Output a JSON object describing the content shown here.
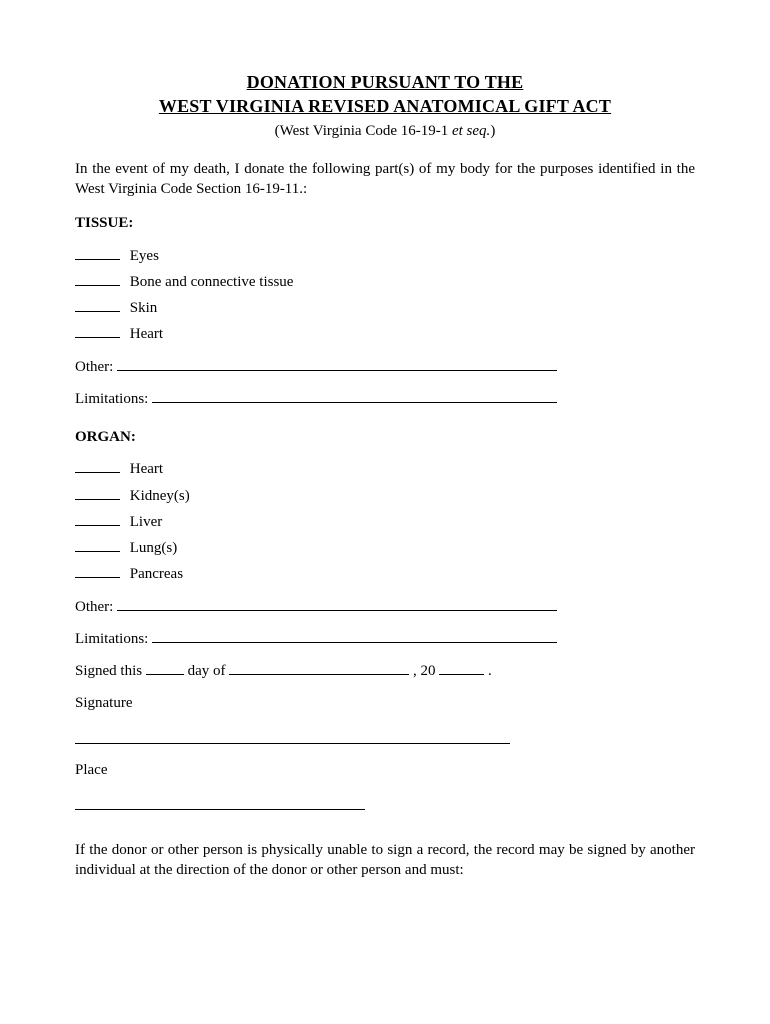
{
  "title": {
    "line1": "DONATION PURSUANT TO THE",
    "line2": "WEST VIRGINIA REVISED ANATOMICAL GIFT ACT"
  },
  "subtitle_prefix": "(West Virginia Code 16-19-1 ",
  "subtitle_italic": "et seq.",
  "subtitle_suffix": ")",
  "intro": "In the event of my death, I donate the following part(s) of my body for the purposes identified in the West Virginia Code Section 16-19-11.:",
  "tissue": {
    "heading": "TISSUE:",
    "items": [
      "Eyes",
      "Bone and connective tissue",
      "Skin",
      "Heart"
    ],
    "other_label": "Other:",
    "limitations_label": "Limitations:"
  },
  "organ": {
    "heading": "ORGAN:",
    "items": [
      "Heart",
      "Kidney(s)",
      "Liver",
      "Lung(s)",
      "Pancreas"
    ],
    "other_label": "Other:",
    "limitations_label": "Limitations:"
  },
  "signing": {
    "signed_this": "Signed this ",
    "day_of": " day of ",
    "year_prefix": ", 20",
    "dot": ".",
    "signature_label": "Signature",
    "place_label": "Place"
  },
  "footer": "If the donor or other person is physically unable to sign a record, the record may be signed by another individual at the direction of the donor or other person and must:"
}
